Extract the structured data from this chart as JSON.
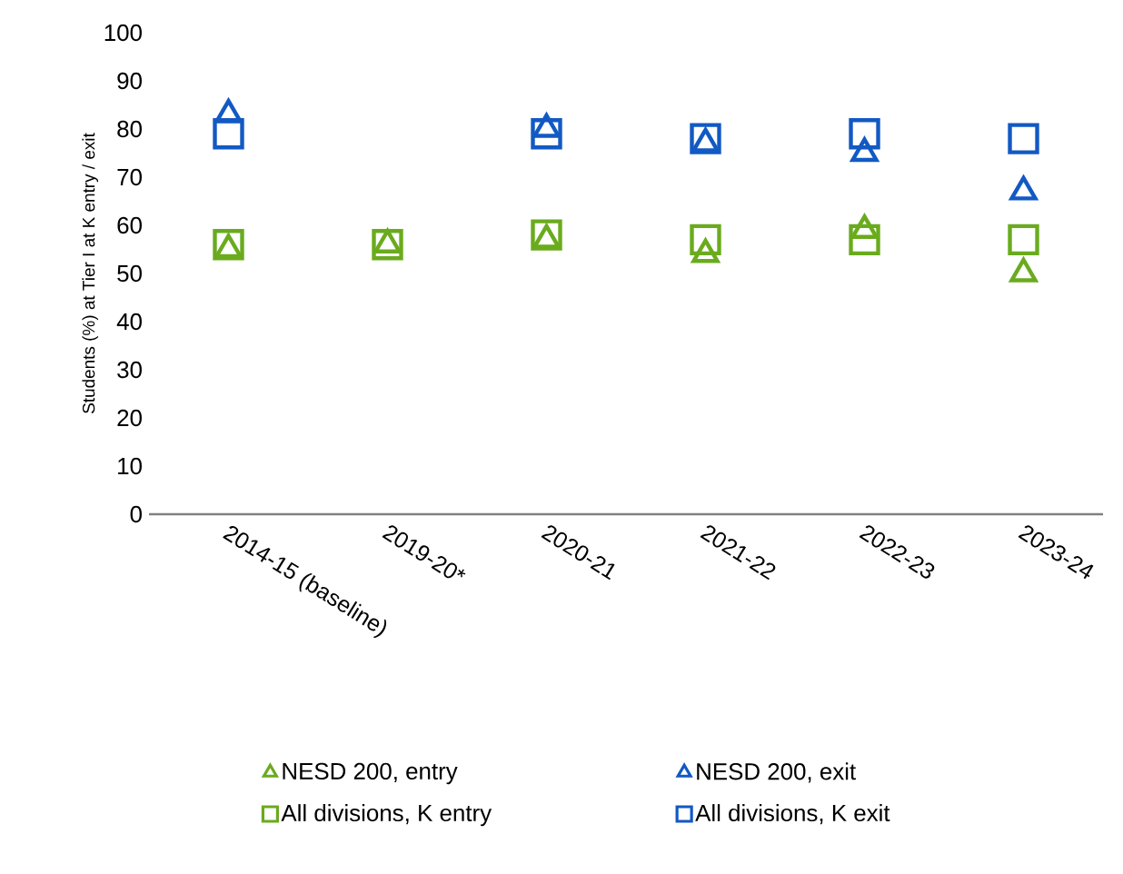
{
  "chart_data": {
    "type": "scatter",
    "ylabel": "Students (%) at Tier I at K entry / exit",
    "categories": [
      "2014-15 (baseline)",
      "2019-20*",
      "2020-21",
      "2021-22",
      "2022-23",
      "2023-24"
    ],
    "ylim": [
      0,
      100
    ],
    "yticks": [
      0,
      10,
      20,
      30,
      40,
      50,
      60,
      70,
      80,
      90,
      100
    ],
    "grid": false,
    "legend": "bottom",
    "series": [
      {
        "name": "NESD 200, entry",
        "color": "#6aab1e",
        "marker": "triangle",
        "values": [
          55,
          56,
          57,
          54,
          59,
          50
        ]
      },
      {
        "name": "NESD 200, exit",
        "color": "#1259c3",
        "marker": "triangle",
        "values": [
          83,
          null,
          80,
          77,
          75,
          67
        ]
      },
      {
        "name": "All divisions, K entry",
        "color": "#6aab1e",
        "marker": "square",
        "values": [
          56,
          56,
          58,
          57,
          57,
          57
        ]
      },
      {
        "name": "All divisions, K exit",
        "color": "#1259c3",
        "marker": "square",
        "values": [
          79,
          null,
          79,
          78,
          79,
          78
        ]
      }
    ]
  }
}
